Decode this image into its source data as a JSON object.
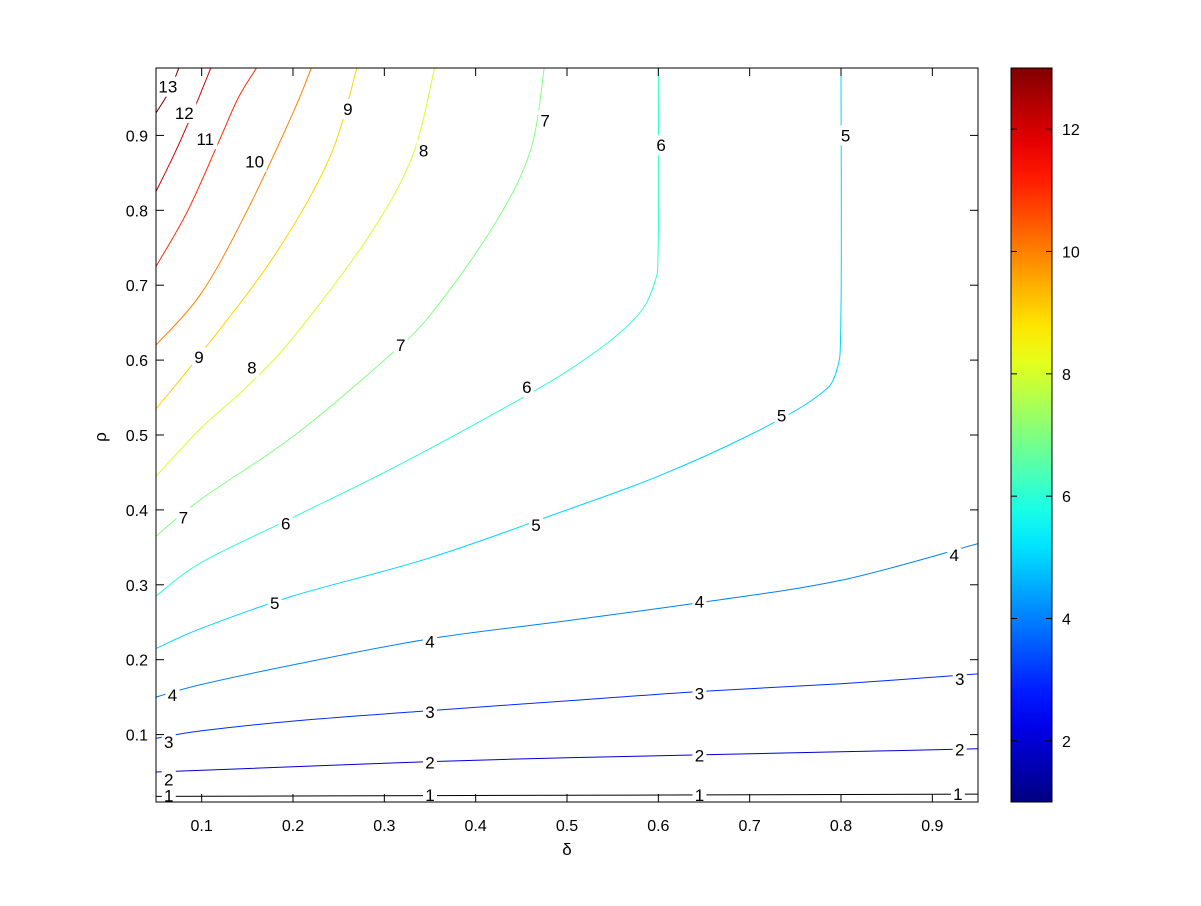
{
  "chart_data": {
    "type": "contour",
    "title": "",
    "xlabel": "δ",
    "ylabel": "ρ",
    "xlim": [
      0.05,
      0.95
    ],
    "ylim": [
      0.01,
      0.99
    ],
    "xticks": [
      "0.1",
      "0.2",
      "0.3",
      "0.4",
      "0.5",
      "0.6",
      "0.7",
      "0.8",
      "0.9"
    ],
    "xtick_values": [
      0.1,
      0.2,
      0.3,
      0.4,
      0.5,
      0.6,
      0.7,
      0.8,
      0.9
    ],
    "yticks": [
      "0.1",
      "0.2",
      "0.3",
      "0.4",
      "0.5",
      "0.6",
      "0.7",
      "0.8",
      "0.9"
    ],
    "ytick_values": [
      0.1,
      0.2,
      0.3,
      0.4,
      0.5,
      0.6,
      0.7,
      0.8,
      0.9
    ],
    "colormap": "jet",
    "colorbar": {
      "range": [
        1,
        13
      ],
      "ticks": [
        "2",
        "4",
        "6",
        "8",
        "10",
        "12"
      ],
      "tick_values": [
        2,
        4,
        6,
        8,
        10,
        12
      ]
    },
    "contours": [
      {
        "level": 1,
        "label": "1",
        "points": [
          [
            0.05,
            0.0175
          ],
          [
            0.35,
            0.0185
          ],
          [
            0.65,
            0.0195
          ],
          [
            0.95,
            0.0205
          ]
        ],
        "labels_at": [
          [
            0.064,
            0.0185
          ],
          [
            0.35,
            0.0195
          ],
          [
            0.645,
            0.0195
          ],
          [
            0.928,
            0.021
          ]
        ]
      },
      {
        "level": 2,
        "label": "2",
        "points": [
          [
            0.05,
            0.05
          ],
          [
            0.2,
            0.057
          ],
          [
            0.35,
            0.064
          ],
          [
            0.5,
            0.069
          ],
          [
            0.65,
            0.073
          ],
          [
            0.8,
            0.077
          ],
          [
            0.95,
            0.081
          ]
        ],
        "labels_at": [
          [
            0.064,
            0.04
          ],
          [
            0.35,
            0.063
          ],
          [
            0.645,
            0.072
          ],
          [
            0.93,
            0.08
          ]
        ]
      },
      {
        "level": 3,
        "label": "3",
        "points": [
          [
            0.05,
            0.095
          ],
          [
            0.1,
            0.105
          ],
          [
            0.2,
            0.118
          ],
          [
            0.35,
            0.132
          ],
          [
            0.5,
            0.145
          ],
          [
            0.65,
            0.158
          ],
          [
            0.8,
            0.168
          ],
          [
            0.95,
            0.181
          ]
        ],
        "labels_at": [
          [
            0.064,
            0.09
          ],
          [
            0.35,
            0.13
          ],
          [
            0.645,
            0.155
          ],
          [
            0.93,
            0.174
          ]
        ]
      },
      {
        "level": 4,
        "label": "4",
        "points": [
          [
            0.05,
            0.15
          ],
          [
            0.1,
            0.167
          ],
          [
            0.2,
            0.193
          ],
          [
            0.35,
            0.228
          ],
          [
            0.5,
            0.252
          ],
          [
            0.65,
            0.277
          ],
          [
            0.8,
            0.306
          ],
          [
            0.95,
            0.355
          ]
        ],
        "labels_at": [
          [
            0.068,
            0.153
          ],
          [
            0.35,
            0.224
          ],
          [
            0.645,
            0.278
          ],
          [
            0.924,
            0.34
          ]
        ]
      },
      {
        "level": 5,
        "label": "5",
        "points": [
          [
            0.05,
            0.215
          ],
          [
            0.1,
            0.242
          ],
          [
            0.2,
            0.285
          ],
          [
            0.35,
            0.336
          ],
          [
            0.5,
            0.4
          ],
          [
            0.6,
            0.445
          ],
          [
            0.7,
            0.5
          ],
          [
            0.77,
            0.548
          ],
          [
            0.795,
            0.585
          ],
          [
            0.8,
            0.67
          ],
          [
            0.8,
            0.99
          ]
        ],
        "labels_at": [
          [
            0.18,
            0.276
          ],
          [
            0.466,
            0.38
          ],
          [
            0.735,
            0.526
          ],
          [
            0.805,
            0.9
          ]
        ]
      },
      {
        "level": 6,
        "label": "6",
        "points": [
          [
            0.05,
            0.285
          ],
          [
            0.1,
            0.33
          ],
          [
            0.2,
            0.39
          ],
          [
            0.3,
            0.45
          ],
          [
            0.4,
            0.515
          ],
          [
            0.5,
            0.585
          ],
          [
            0.57,
            0.65
          ],
          [
            0.595,
            0.7
          ],
          [
            0.6,
            0.76
          ],
          [
            0.6,
            0.99
          ]
        ],
        "labels_at": [
          [
            0.192,
            0.382
          ],
          [
            0.456,
            0.564
          ],
          [
            0.603,
            0.887
          ]
        ]
      },
      {
        "level": 7,
        "label": "7",
        "points": [
          [
            0.05,
            0.365
          ],
          [
            0.1,
            0.415
          ],
          [
            0.2,
            0.498
          ],
          [
            0.3,
            0.6
          ],
          [
            0.35,
            0.66
          ],
          [
            0.42,
            0.78
          ],
          [
            0.46,
            0.88
          ],
          [
            0.475,
            0.99
          ]
        ],
        "labels_at": [
          [
            0.08,
            0.39
          ],
          [
            0.318,
            0.62
          ],
          [
            0.476,
            0.92
          ]
        ]
      },
      {
        "level": 8,
        "label": "8",
        "points": [
          [
            0.05,
            0.445
          ],
          [
            0.1,
            0.51
          ],
          [
            0.15,
            0.565
          ],
          [
            0.2,
            0.63
          ],
          [
            0.28,
            0.76
          ],
          [
            0.33,
            0.87
          ],
          [
            0.355,
            0.99
          ]
        ],
        "labels_at": [
          [
            0.155,
            0.59
          ],
          [
            0.343,
            0.88
          ]
        ]
      },
      {
        "level": 9,
        "label": "9",
        "points": [
          [
            0.05,
            0.535
          ],
          [
            0.1,
            0.61
          ],
          [
            0.18,
            0.74
          ],
          [
            0.24,
            0.87
          ],
          [
            0.27,
            0.99
          ]
        ],
        "labels_at": [
          [
            0.097,
            0.604
          ],
          [
            0.26,
            0.935
          ]
        ]
      },
      {
        "level": 10,
        "label": "10",
        "points": [
          [
            0.05,
            0.62
          ],
          [
            0.1,
            0.69
          ],
          [
            0.15,
            0.8
          ],
          [
            0.2,
            0.93
          ],
          [
            0.22,
            0.99
          ]
        ],
        "labels_at": [
          [
            0.158,
            0.865
          ]
        ]
      },
      {
        "level": 11,
        "label": "11",
        "points": [
          [
            0.05,
            0.725
          ],
          [
            0.085,
            0.8
          ],
          [
            0.12,
            0.895
          ],
          [
            0.14,
            0.95
          ],
          [
            0.16,
            0.99
          ]
        ],
        "labels_at": [
          [
            0.104,
            0.895
          ]
        ]
      },
      {
        "level": 12,
        "label": "12",
        "points": [
          [
            0.05,
            0.825
          ],
          [
            0.07,
            0.875
          ],
          [
            0.09,
            0.93
          ],
          [
            0.11,
            0.99
          ]
        ],
        "labels_at": [
          [
            0.081,
            0.93
          ]
        ]
      },
      {
        "level": 13,
        "label": "13",
        "points": [
          [
            0.05,
            0.93
          ],
          [
            0.065,
            0.96
          ],
          [
            0.075,
            0.99
          ]
        ],
        "labels_at": [
          [
            0.063,
            0.965
          ]
        ]
      }
    ]
  }
}
